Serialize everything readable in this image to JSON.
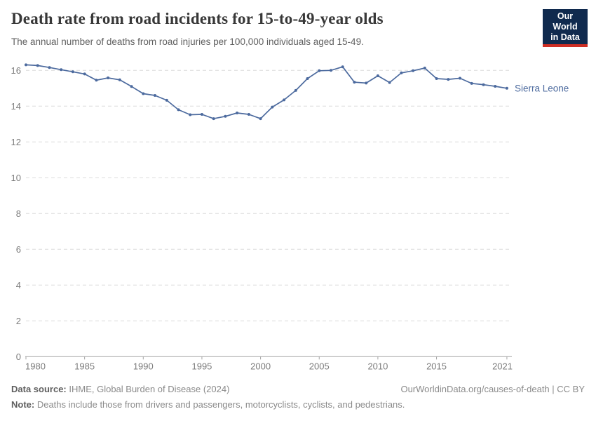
{
  "header": {
    "title": "Death rate from road incidents for 15-to-49-year olds",
    "subtitle": "The annual number of deaths from road injuries per 100,000 individuals aged 15-49.",
    "logo": {
      "line1": "Our World",
      "line2": "in Data",
      "bg_color": "#102a4e",
      "bar_color": "#cf2e24"
    }
  },
  "chart_data": {
    "type": "line",
    "title": "Death rate from road incidents for 15-to-49-year olds",
    "xlabel": "",
    "ylabel": "",
    "xlim": [
      1980,
      2021
    ],
    "ylim": [
      0,
      16
    ],
    "grid": "horizontal-dashed",
    "legend_position": "end-of-line-label",
    "xticks": [
      1980,
      1985,
      1990,
      1995,
      2000,
      2005,
      2010,
      2015,
      2021
    ],
    "yticks": [
      0,
      2,
      4,
      6,
      8,
      10,
      12,
      14,
      16
    ],
    "x": [
      1980,
      1981,
      1982,
      1983,
      1984,
      1985,
      1986,
      1987,
      1988,
      1989,
      1990,
      1991,
      1992,
      1993,
      1994,
      1995,
      1996,
      1997,
      1998,
      1999,
      2000,
      2001,
      2002,
      2003,
      2004,
      2005,
      2006,
      2007,
      2008,
      2009,
      2010,
      2011,
      2012,
      2013,
      2014,
      2015,
      2016,
      2017,
      2018,
      2019,
      2020,
      2021
    ],
    "series": [
      {
        "name": "Sierra Leone",
        "color": "#4c6a9e",
        "values": [
          16.31,
          16.27,
          16.16,
          16.04,
          15.92,
          15.8,
          15.45,
          15.58,
          15.47,
          15.1,
          14.7,
          14.6,
          14.33,
          13.8,
          13.52,
          13.54,
          13.3,
          13.43,
          13.62,
          13.54,
          13.3,
          13.95,
          14.35,
          14.88,
          15.54,
          15.98,
          16.0,
          16.2,
          15.34,
          15.29,
          15.7,
          15.32,
          15.86,
          15.98,
          16.13,
          15.54,
          15.5,
          15.56,
          15.27,
          15.2,
          15.11,
          15.0
        ]
      }
    ],
    "end_label": "Sierra Leone"
  },
  "footer": {
    "datasource_label": "Data source:",
    "datasource_value": " IHME, Global Burden of Disease (2024)",
    "attribution": "OurWorldinData.org/causes-of-death | CC BY",
    "note_label": "Note:",
    "note_value": " Deaths include those from drivers and passengers, motorcyclists, cyclists, and pedestrians."
  },
  "style": {
    "grid_color": "#dcdcdc",
    "axis_color": "#a3a3a3",
    "tick_label_color": "#7d7d7d"
  }
}
